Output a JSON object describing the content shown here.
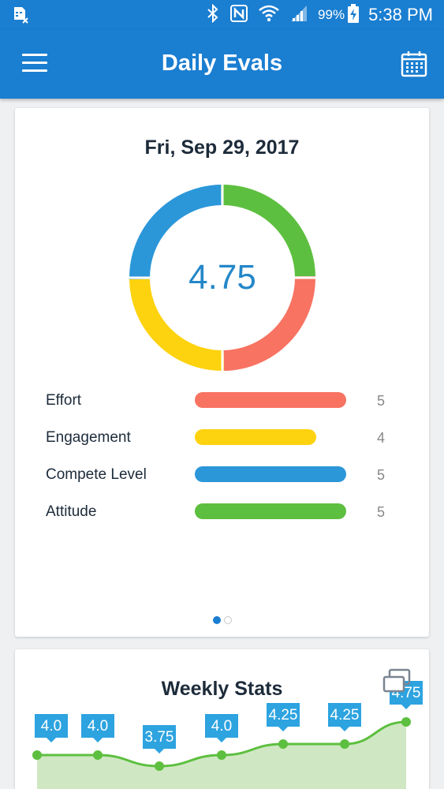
{
  "status_bar": {
    "battery": "99%",
    "time": "5:38 PM",
    "icons": [
      "sim-card-icon",
      "bluetooth-icon",
      "nfc-icon",
      "wifi-icon",
      "signal-icon",
      "battery-charging-icon"
    ]
  },
  "app_bar": {
    "title": "Daily Evals",
    "menu_icon": "hamburger-menu-icon",
    "calendar_icon": "calendar-icon"
  },
  "daily_card": {
    "date": "Fri, Sep 29, 2017",
    "score": "4.75",
    "metrics": [
      {
        "label": "Effort",
        "value": "5",
        "max": 5,
        "color": "#f87362"
      },
      {
        "label": "Engagement",
        "value": "4",
        "max": 5,
        "color": "#fdd20f"
      },
      {
        "label": "Compete Level",
        "value": "5",
        "max": 5,
        "color": "#2b97d9"
      },
      {
        "label": "Attitude",
        "value": "5",
        "max": 5,
        "color": "#5dbf3f"
      }
    ],
    "donut_segments": [
      {
        "metric": "Attitude",
        "color": "#5dbf3f"
      },
      {
        "metric": "Effort",
        "color": "#f87362"
      },
      {
        "metric": "Engagement",
        "color": "#fdd20f"
      },
      {
        "metric": "Compete Level",
        "color": "#2b97d9"
      }
    ],
    "pager": {
      "pages": 2,
      "active": 0
    }
  },
  "weekly_card": {
    "title": "Weekly Stats",
    "expand_icon": "expand-window-icon"
  },
  "chart_data": {
    "type": "area",
    "title": "Weekly Stats",
    "x": [
      1,
      2,
      3,
      4,
      5,
      6,
      7
    ],
    "values": [
      4.0,
      4.0,
      3.75,
      4.0,
      4.25,
      4.25,
      4.75
    ],
    "labels": [
      "4.0",
      "4.0",
      "3.75",
      "4.0",
      "4.25",
      "4.25",
      "4.75"
    ],
    "line_color": "#5dbf3f",
    "fill_color": "#cfe8c3",
    "label_color": "#2da3e0"
  }
}
